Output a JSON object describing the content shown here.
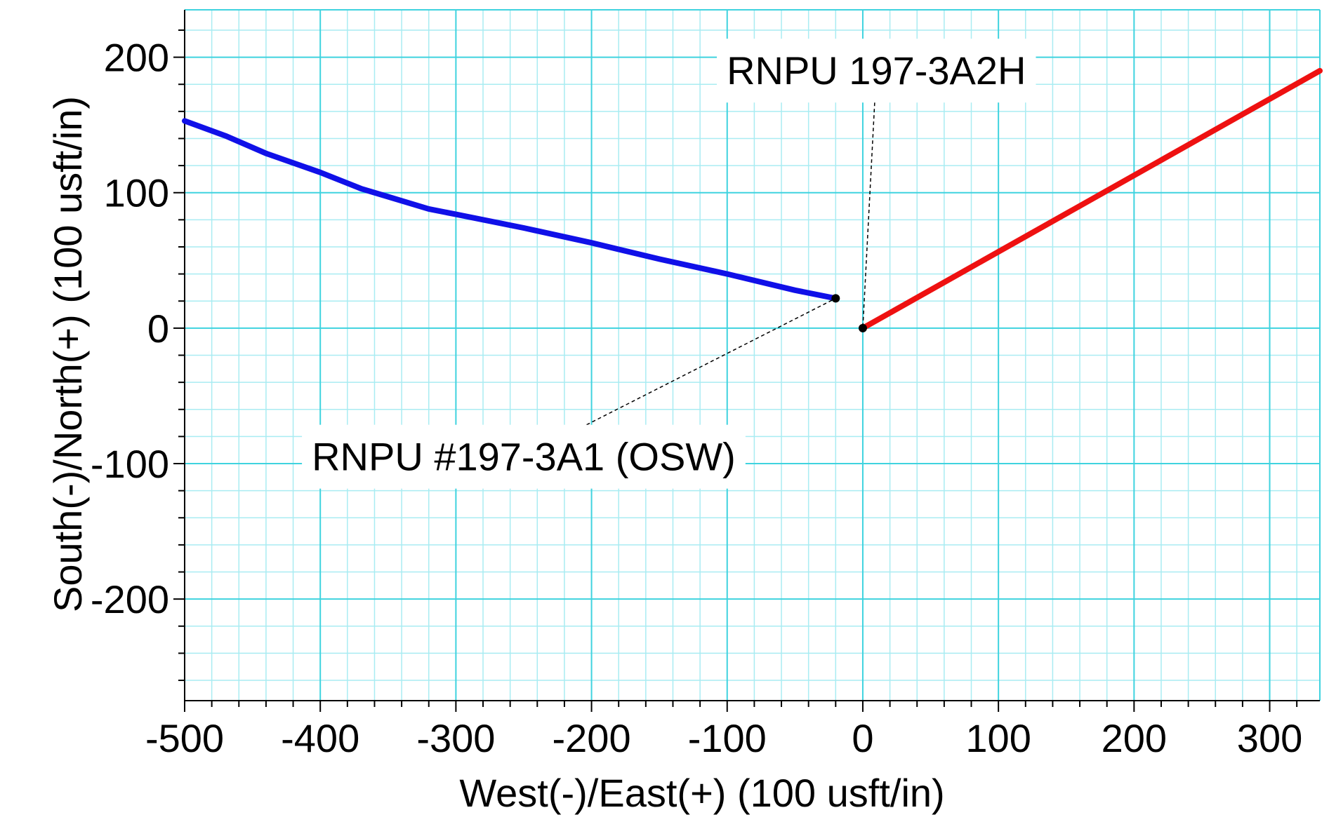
{
  "chart_data": {
    "type": "line",
    "xlabel": "West(-)/East(+) (100 usft/in)",
    "ylabel": "South(-)/North(+) (100 usft/in)",
    "xlim": [
      -500,
      337
    ],
    "ylim": [
      -275,
      235
    ],
    "x_ticks": [
      -500,
      -400,
      -300,
      -200,
      -100,
      0,
      100,
      200,
      300
    ],
    "y_ticks": [
      -200,
      -100,
      0,
      100,
      200
    ],
    "x_tick_labels": [
      "-500",
      "-400",
      "-300",
      "-200",
      "-100",
      "0",
      "100",
      "200",
      "300"
    ],
    "y_tick_labels": [
      "-200",
      "-100",
      "0",
      "100",
      "200"
    ],
    "grid": true,
    "colors": {
      "grid_major": "#3fd3df",
      "grid_minor": "#a9ecf2",
      "axis": "#000000"
    },
    "series": [
      {
        "label": "RNPU #197-3A1 (OSW)",
        "color": "#1010e8",
        "points": [
          [
            -500,
            153
          ],
          [
            -470,
            142
          ],
          [
            -440,
            129
          ],
          [
            -400,
            115
          ],
          [
            -370,
            103
          ],
          [
            -350,
            97
          ],
          [
            -320,
            88
          ],
          [
            -300,
            84
          ],
          [
            -250,
            74
          ],
          [
            -200,
            63
          ],
          [
            -150,
            51
          ],
          [
            -100,
            40
          ],
          [
            -50,
            28
          ],
          [
            -20,
            22
          ]
        ]
      },
      {
        "label": "RNPU  197-3A2H",
        "color": "#ee1111",
        "points": [
          [
            0,
            0
          ],
          [
            337,
            190
          ]
        ]
      }
    ],
    "annotations": [
      {
        "text": "RNPU  197-3A2H",
        "anchor": [
          0,
          0
        ],
        "text_pos": [
          10,
          180
        ]
      },
      {
        "text": "RNPU #197-3A1 (OSW)",
        "anchor": [
          -20,
          22
        ],
        "text_pos": [
          -250,
          -105
        ]
      }
    ]
  }
}
